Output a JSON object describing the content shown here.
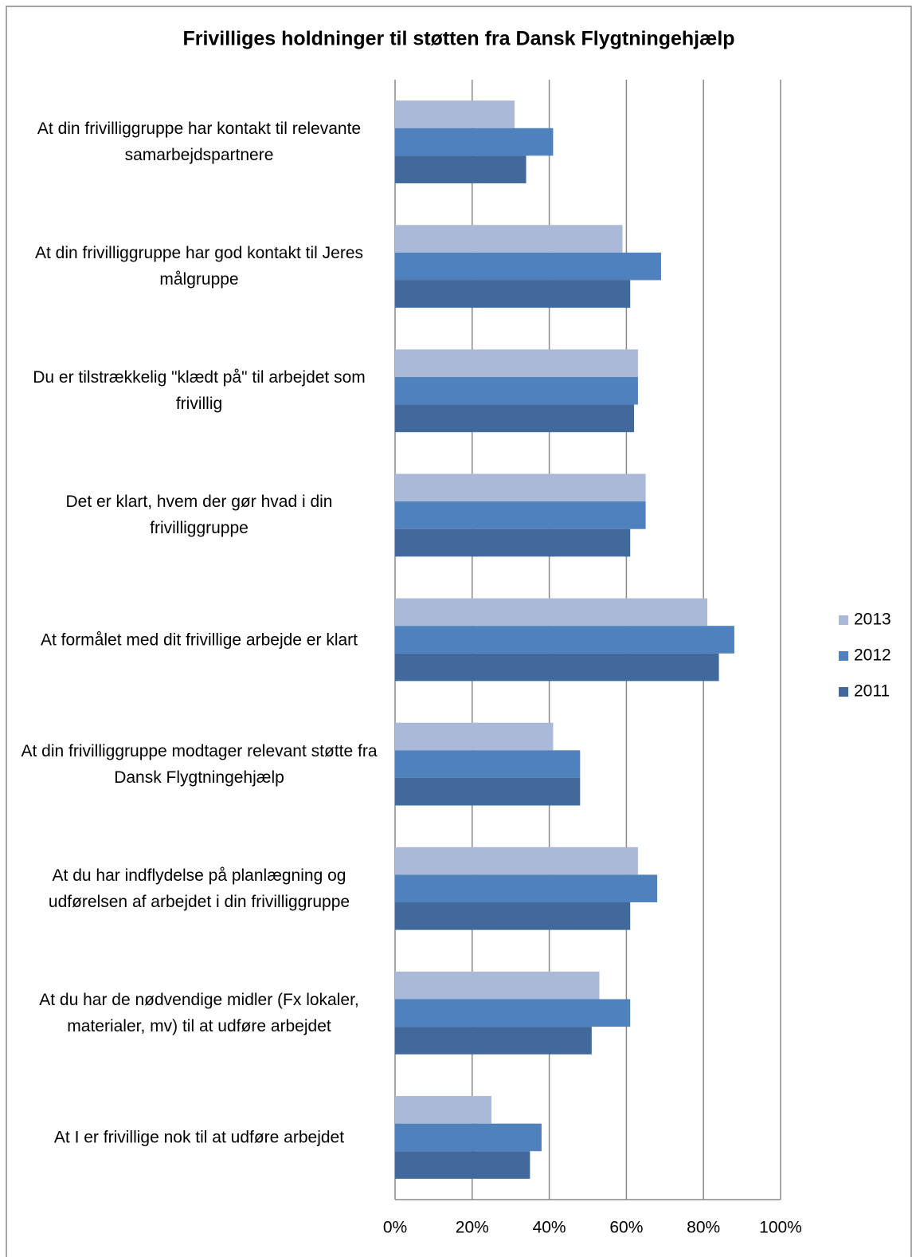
{
  "chart_data": {
    "type": "barh",
    "title": "Frivilliges holdninger til støtten fra Dansk Flygtningehjælp",
    "categories": [
      "At din frivilliggruppe har kontakt til relevante samarbejdspartnere",
      "At din frivilliggruppe har god kontakt til Jeres målgruppe",
      "Du er tilstrækkelig \"klædt på\" til arbejdet som frivillig",
      "Det er klart, hvem der gør hvad i din frivilliggruppe",
      "At formålet med dit frivillige arbejde er klart",
      "At din frivilliggruppe modtager relevant støtte fra Dansk Flygtningehjælp",
      "At du har indflydelse på planlægning og udførelsen af arbejdet i din frivilliggruppe",
      "At du har de nødvendige midler (Fx lokaler, materialer, mv) til at udføre arbejdet",
      "At I er frivillige nok til at udføre arbejdet"
    ],
    "series": [
      {
        "name": "2013",
        "color": "#aab9d7",
        "values": [
          31,
          59,
          63,
          65,
          81,
          41,
          63,
          53,
          25
        ]
      },
      {
        "name": "2012",
        "color": "#4f81bd",
        "values": [
          41,
          69,
          63,
          65,
          88,
          48,
          68,
          61,
          38
        ]
      },
      {
        "name": "2011",
        "color": "#41699c",
        "values": [
          34,
          61,
          62,
          61,
          84,
          48,
          61,
          51,
          35
        ]
      }
    ],
    "xlim": [
      0,
      100
    ],
    "xticks": [
      {
        "value": 0,
        "label": "0%"
      },
      {
        "value": 20,
        "label": "20%"
      },
      {
        "value": 40,
        "label": "40%"
      },
      {
        "value": 60,
        "label": "60%"
      },
      {
        "value": 80,
        "label": "80%"
      },
      {
        "value": 100,
        "label": "100%"
      }
    ],
    "grid": true,
    "legend": "right"
  }
}
